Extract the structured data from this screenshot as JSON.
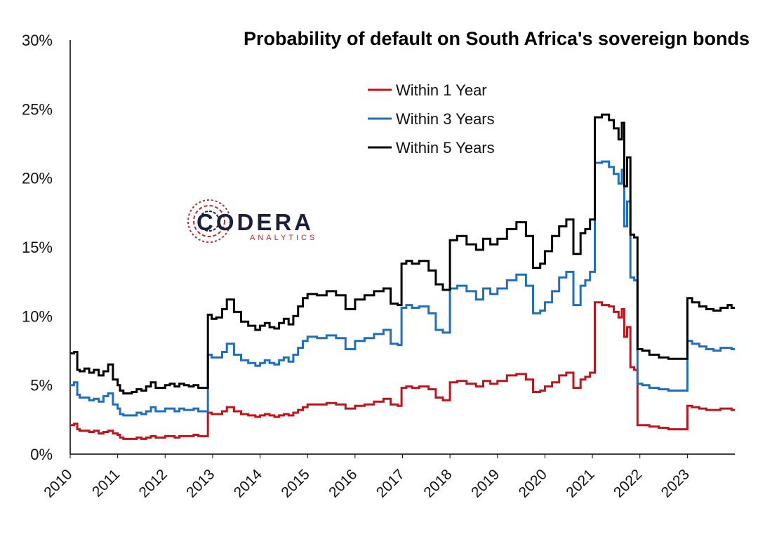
{
  "chart_data": {
    "type": "line",
    "title": "Probability of default on South Africa's sovereign bonds",
    "xlabel": "",
    "ylabel": "",
    "xlim": [
      2010,
      2024
    ],
    "ylim": [
      0,
      30
    ],
    "y_ticks": [
      "0%",
      "5%",
      "10%",
      "15%",
      "20%",
      "25%",
      "30%"
    ],
    "x_ticks": [
      "2010",
      "2011",
      "2012",
      "2013",
      "2014",
      "2015",
      "2016",
      "2017",
      "2018",
      "2019",
      "2020",
      "2021",
      "2022",
      "2023"
    ],
    "grid": false,
    "legend_position": "top-center",
    "line_style": "step",
    "series": [
      {
        "name": "Within 1 Year",
        "color": "#c0141c",
        "x": [
          2010.0,
          2010.08,
          2010.15,
          2010.2,
          2010.3,
          2010.4,
          2010.5,
          2010.6,
          2010.7,
          2010.8,
          2010.9,
          2011.0,
          2011.05,
          2011.12,
          2011.2,
          2011.3,
          2011.4,
          2011.5,
          2011.6,
          2011.7,
          2011.8,
          2011.9,
          2012.0,
          2012.1,
          2012.2,
          2012.3,
          2012.4,
          2012.5,
          2012.6,
          2012.7,
          2012.8,
          2012.9,
          2012.98,
          2013.08,
          2013.2,
          2013.3,
          2013.45,
          2013.6,
          2013.75,
          2013.9,
          2014.0,
          2014.1,
          2014.2,
          2014.3,
          2014.4,
          2014.5,
          2014.6,
          2014.7,
          2014.8,
          2014.9,
          2015.0,
          2015.2,
          2015.4,
          2015.6,
          2015.8,
          2016.0,
          2016.2,
          2016.4,
          2016.6,
          2016.75,
          2016.9,
          2016.98,
          2017.08,
          2017.2,
          2017.35,
          2017.55,
          2017.7,
          2017.85,
          2018.0,
          2018.15,
          2018.35,
          2018.55,
          2018.7,
          2018.85,
          2019.0,
          2019.2,
          2019.4,
          2019.6,
          2019.75,
          2019.9,
          2020.0,
          2020.15,
          2020.3,
          2020.45,
          2020.6,
          2020.75,
          2020.85,
          2020.95,
          2021.05,
          2021.2,
          2021.35,
          2021.45,
          2021.55,
          2021.62,
          2021.67,
          2021.73,
          2021.8,
          2021.88,
          2021.95,
          2022.05,
          2022.2,
          2022.4,
          2022.6,
          2022.75,
          2022.9,
          2023.0,
          2023.1,
          2023.25,
          2023.4,
          2023.55,
          2023.7,
          2023.85,
          2023.93
        ],
        "values": [
          2.1,
          2.2,
          1.8,
          1.7,
          1.7,
          1.6,
          1.7,
          1.5,
          1.6,
          1.7,
          1.5,
          1.4,
          1.2,
          1.1,
          1.1,
          1.1,
          1.2,
          1.1,
          1.2,
          1.3,
          1.2,
          1.2,
          1.3,
          1.3,
          1.2,
          1.3,
          1.3,
          1.3,
          1.4,
          1.3,
          1.3,
          3.0,
          2.9,
          2.9,
          3.1,
          3.4,
          3.1,
          2.9,
          2.8,
          2.7,
          2.8,
          2.9,
          2.8,
          2.7,
          2.8,
          2.9,
          2.8,
          3.0,
          3.2,
          3.4,
          3.6,
          3.6,
          3.7,
          3.6,
          3.3,
          3.5,
          3.6,
          3.8,
          4.0,
          3.6,
          3.5,
          4.8,
          4.9,
          4.8,
          4.9,
          4.7,
          4.1,
          3.9,
          5.2,
          5.3,
          5.1,
          4.9,
          5.3,
          5.1,
          5.3,
          5.7,
          5.8,
          5.4,
          4.5,
          4.6,
          4.9,
          5.2,
          5.7,
          5.9,
          4.8,
          5.4,
          5.6,
          5.9,
          11.0,
          10.8,
          10.7,
          10.3,
          9.9,
          10.5,
          8.5,
          9.2,
          6.3,
          6.1,
          2.1,
          2.1,
          2.0,
          1.9,
          1.8,
          1.8,
          1.8,
          3.5,
          3.4,
          3.3,
          3.2,
          3.2,
          3.3,
          3.3,
          3.2
        ]
      },
      {
        "name": "Within 3 Years",
        "color": "#1f6fbf",
        "x": [
          2010.0,
          2010.08,
          2010.15,
          2010.2,
          2010.3,
          2010.4,
          2010.5,
          2010.6,
          2010.7,
          2010.8,
          2010.9,
          2011.0,
          2011.05,
          2011.12,
          2011.2,
          2011.3,
          2011.4,
          2011.5,
          2011.6,
          2011.7,
          2011.8,
          2011.9,
          2012.0,
          2012.1,
          2012.2,
          2012.3,
          2012.4,
          2012.5,
          2012.6,
          2012.7,
          2012.8,
          2012.9,
          2012.98,
          2013.08,
          2013.2,
          2013.3,
          2013.45,
          2013.6,
          2013.75,
          2013.9,
          2014.0,
          2014.1,
          2014.2,
          2014.3,
          2014.4,
          2014.5,
          2014.6,
          2014.7,
          2014.8,
          2014.9,
          2015.0,
          2015.2,
          2015.4,
          2015.6,
          2015.8,
          2016.0,
          2016.2,
          2016.4,
          2016.6,
          2016.75,
          2016.9,
          2016.98,
          2017.08,
          2017.2,
          2017.35,
          2017.55,
          2017.7,
          2017.85,
          2018.0,
          2018.15,
          2018.35,
          2018.55,
          2018.7,
          2018.85,
          2019.0,
          2019.2,
          2019.4,
          2019.6,
          2019.75,
          2019.9,
          2020.0,
          2020.15,
          2020.3,
          2020.45,
          2020.6,
          2020.75,
          2020.85,
          2020.95,
          2021.05,
          2021.2,
          2021.35,
          2021.45,
          2021.55,
          2021.62,
          2021.67,
          2021.73,
          2021.8,
          2021.88,
          2021.95,
          2022.05,
          2022.2,
          2022.4,
          2022.6,
          2022.75,
          2022.9,
          2023.0,
          2023.1,
          2023.25,
          2023.4,
          2023.55,
          2023.7,
          2023.85,
          2023.93
        ],
        "values": [
          5.0,
          5.2,
          4.3,
          4.1,
          4.1,
          3.9,
          4.0,
          3.8,
          4.2,
          4.4,
          3.6,
          3.3,
          2.9,
          2.8,
          2.8,
          2.8,
          3.0,
          2.9,
          3.1,
          3.4,
          3.1,
          3.1,
          3.3,
          3.3,
          3.1,
          3.3,
          3.2,
          3.2,
          3.3,
          3.1,
          3.1,
          7.2,
          7.0,
          7.0,
          7.4,
          8.0,
          7.2,
          6.8,
          6.6,
          6.4,
          6.6,
          6.8,
          6.6,
          6.5,
          6.8,
          7.0,
          6.7,
          7.2,
          7.7,
          8.2,
          8.5,
          8.4,
          8.6,
          8.4,
          7.6,
          8.2,
          8.4,
          8.7,
          9.0,
          8.0,
          7.9,
          10.6,
          10.8,
          10.6,
          10.7,
          10.2,
          9.0,
          8.8,
          12.0,
          12.2,
          11.8,
          11.2,
          12.0,
          11.6,
          12.0,
          12.6,
          13.0,
          12.2,
          10.2,
          10.4,
          11.0,
          11.8,
          12.8,
          13.2,
          10.8,
          12.2,
          12.6,
          13.2,
          21.1,
          21.2,
          20.8,
          20.3,
          19.6,
          20.6,
          16.5,
          18.3,
          12.8,
          12.6,
          5.1,
          5.0,
          4.8,
          4.7,
          4.6,
          4.6,
          4.6,
          8.2,
          8.0,
          7.8,
          7.6,
          7.5,
          7.7,
          7.7,
          7.6
        ]
      },
      {
        "name": "Within 5 Years",
        "color": "#000000",
        "x": [
          2010.0,
          2010.08,
          2010.15,
          2010.2,
          2010.3,
          2010.4,
          2010.5,
          2010.6,
          2010.7,
          2010.8,
          2010.9,
          2011.0,
          2011.05,
          2011.12,
          2011.2,
          2011.3,
          2011.4,
          2011.5,
          2011.6,
          2011.7,
          2011.8,
          2011.9,
          2012.0,
          2012.1,
          2012.2,
          2012.3,
          2012.4,
          2012.5,
          2012.6,
          2012.7,
          2012.8,
          2012.9,
          2012.98,
          2013.08,
          2013.2,
          2013.3,
          2013.45,
          2013.6,
          2013.75,
          2013.9,
          2014.0,
          2014.1,
          2014.2,
          2014.3,
          2014.4,
          2014.5,
          2014.6,
          2014.7,
          2014.8,
          2014.9,
          2015.0,
          2015.2,
          2015.4,
          2015.6,
          2015.8,
          2016.0,
          2016.2,
          2016.4,
          2016.6,
          2016.75,
          2016.9,
          2016.98,
          2017.08,
          2017.2,
          2017.35,
          2017.55,
          2017.7,
          2017.85,
          2018.0,
          2018.15,
          2018.35,
          2018.55,
          2018.7,
          2018.85,
          2019.0,
          2019.2,
          2019.4,
          2019.6,
          2019.75,
          2019.9,
          2020.0,
          2020.15,
          2020.3,
          2020.45,
          2020.6,
          2020.75,
          2020.85,
          2020.95,
          2021.05,
          2021.2,
          2021.35,
          2021.45,
          2021.55,
          2021.62,
          2021.67,
          2021.73,
          2021.8,
          2021.88,
          2021.95,
          2022.05,
          2022.2,
          2022.4,
          2022.6,
          2022.75,
          2022.9,
          2023.0,
          2023.1,
          2023.25,
          2023.4,
          2023.55,
          2023.7,
          2023.85,
          2023.93
        ],
        "values": [
          7.3,
          7.4,
          6.1,
          6.0,
          6.2,
          5.9,
          6.1,
          5.7,
          6.0,
          6.5,
          5.4,
          5.0,
          4.6,
          4.4,
          4.4,
          4.5,
          4.7,
          4.6,
          4.9,
          5.2,
          4.8,
          4.8,
          5.0,
          5.1,
          4.9,
          5.1,
          5.0,
          4.9,
          5.0,
          4.8,
          4.8,
          10.1,
          9.8,
          9.9,
          10.5,
          11.2,
          10.3,
          9.6,
          9.3,
          9.0,
          9.3,
          9.5,
          9.2,
          9.1,
          9.5,
          9.8,
          9.4,
          10.0,
          10.7,
          11.3,
          11.6,
          11.5,
          11.8,
          11.5,
          10.5,
          11.2,
          11.5,
          11.8,
          12.0,
          10.9,
          10.8,
          13.8,
          14.0,
          13.8,
          14.0,
          13.3,
          12.3,
          11.9,
          15.5,
          15.8,
          15.2,
          14.8,
          15.6,
          15.2,
          15.6,
          16.3,
          16.8,
          15.8,
          13.5,
          13.8,
          14.7,
          15.8,
          16.5,
          17.0,
          14.5,
          16.0,
          16.3,
          17.0,
          24.4,
          24.6,
          24.2,
          23.6,
          22.8,
          24.0,
          19.4,
          21.5,
          15.9,
          15.7,
          7.6,
          7.5,
          7.2,
          7.0,
          6.9,
          6.9,
          6.9,
          11.3,
          11.0,
          10.7,
          10.5,
          10.4,
          10.6,
          10.8,
          10.6
        ]
      }
    ]
  },
  "logo": {
    "word": "CODERA",
    "sub": "ANALYTICS",
    "color_dark": "#1b1f3a",
    "color_accent": "#c2272d"
  }
}
